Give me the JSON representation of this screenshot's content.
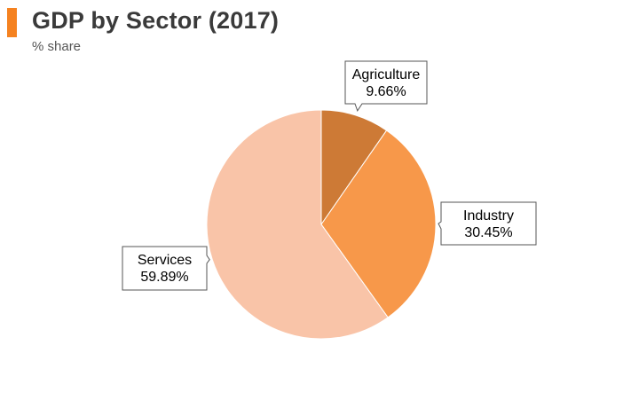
{
  "header": {
    "title": "GDP by Sector (2017)",
    "subtitle": "% share"
  },
  "colors": {
    "accent_bar": "#f58220",
    "title_text": "#3a3a3a"
  },
  "chart_data": {
    "type": "pie",
    "title": "GDP by Sector (2017)",
    "subtitle": "% share",
    "legend": "none",
    "slices": [
      {
        "label": "Agriculture",
        "value": 9.66,
        "display": "9.66%",
        "color": "#cd7a36"
      },
      {
        "label": "Industry",
        "value": 30.45,
        "display": "30.45%",
        "color": "#f7984a"
      },
      {
        "label": "Services",
        "value": 59.89,
        "display": "59.89%",
        "color": "#f9c4a8"
      }
    ]
  }
}
